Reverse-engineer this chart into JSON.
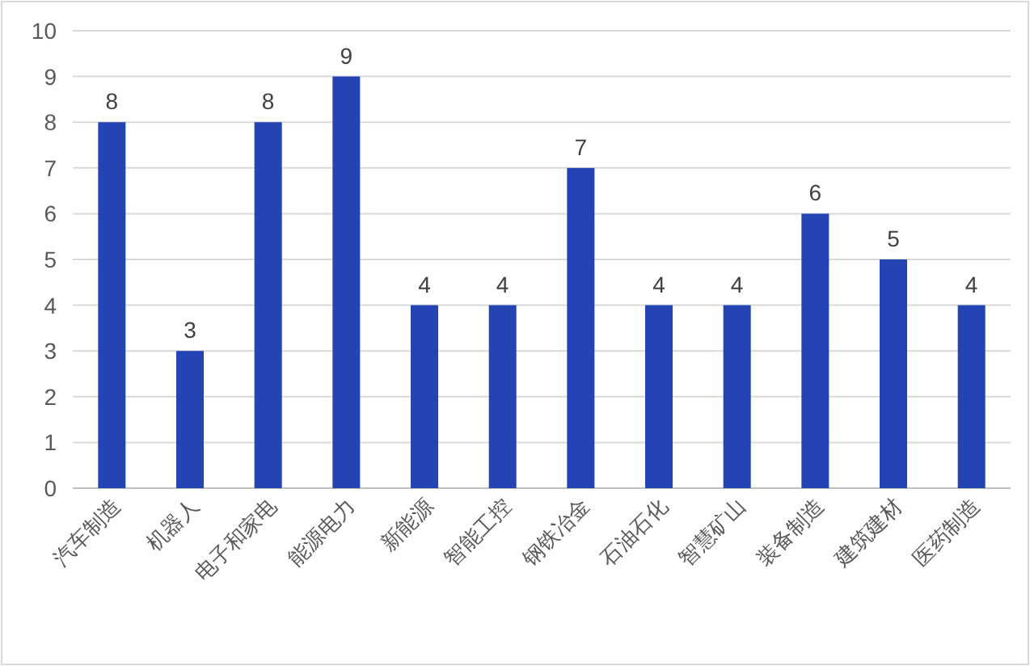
{
  "chart_data": {
    "type": "bar",
    "categories": [
      "汽车制造",
      "机器人",
      "电子和家电",
      "能源电力",
      "新能源",
      "智能工控",
      "钢铁冶金",
      "石油石化",
      "智慧矿山",
      "装备制造",
      "建筑建材",
      "医药制造"
    ],
    "values": [
      8,
      3,
      8,
      9,
      4,
      4,
      7,
      4,
      4,
      6,
      5,
      4
    ],
    "color": "#2444b4",
    "ylim": [
      0,
      10
    ],
    "yticks": [
      0,
      1,
      2,
      3,
      4,
      5,
      6,
      7,
      8,
      9,
      10
    ],
    "grid": "y",
    "data_labels": true
  }
}
